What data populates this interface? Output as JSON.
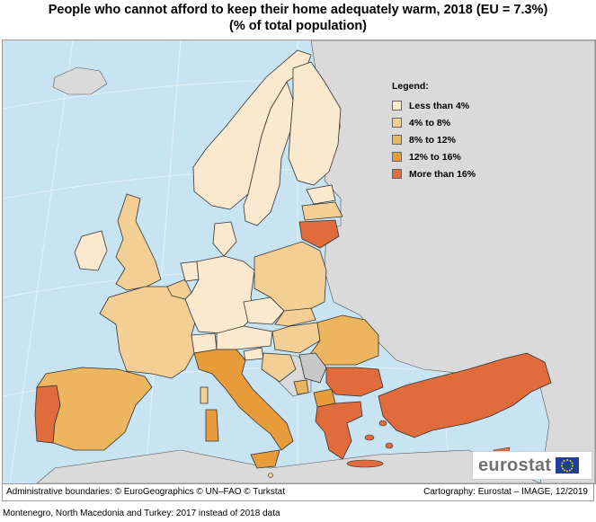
{
  "title_line1": "People who cannot afford to keep their home adequately warm, 2018 (EU = 7.3%)",
  "title_line2": "(% of total population)",
  "legend": {
    "title": "Legend:",
    "classes": [
      {
        "label": "Less than 4%",
        "color": "#fbe9cf"
      },
      {
        "label": "4% to 8%",
        "color": "#f3cf96"
      },
      {
        "label": "8% to 12%",
        "color": "#eeb55f"
      },
      {
        "label": "12% to 16%",
        "color": "#e79b3a"
      },
      {
        "label": "More than 16%",
        "color": "#df6c3a"
      }
    ]
  },
  "colors": {
    "sea": "#c8e4f3",
    "non_data_land": "#dadada",
    "no_data_country": "#c8c8c8",
    "border": "#333333",
    "graticule": "#e4f1f8"
  },
  "footer": {
    "left": "Administrative boundaries: © EuroGeographics © UN–FAO © Turkstat",
    "right": "Cartography: Eurostat – IMAGE, 12/2019"
  },
  "note": "Montenegro, North Macedonia and Turkey: 2017 instead of 2018 data",
  "logo": {
    "text": "eurostat",
    "icon": "eu-flag-icon"
  }
}
